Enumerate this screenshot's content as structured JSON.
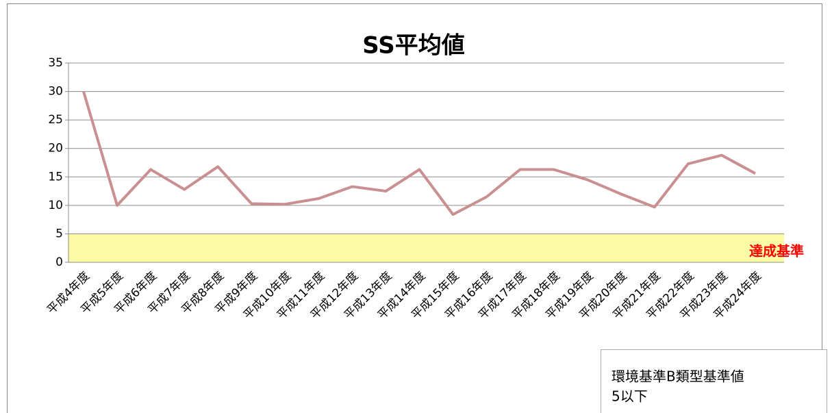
{
  "chart_data": {
    "type": "line",
    "title": "SS平均値",
    "categories": [
      "平成4年度",
      "平成5年度",
      "平成6年度",
      "平成7年度",
      "平成8年度",
      "平成9年度",
      "平成10年度",
      "平成11年度",
      "平成12年度",
      "平成13年度",
      "平成14年度",
      "平成15年度",
      "平成16年度",
      "平成17年度",
      "平成18年度",
      "平成19年度",
      "平成20年度",
      "平成21年度",
      "平成22年度",
      "平成23年度",
      "平成24年度"
    ],
    "values": [
      30,
      10,
      16.3,
      12.8,
      16.8,
      10.3,
      10.2,
      11.2,
      13.3,
      12.5,
      16.3,
      8.4,
      11.5,
      16.3,
      16.3,
      14.5,
      12,
      9.7,
      17.3,
      18.8,
      15.6
    ],
    "color": "#c98f91",
    "ylim": [
      0,
      35
    ],
    "yticks": [
      0,
      5,
      10,
      15,
      20,
      25,
      30,
      35
    ],
    "grid": true,
    "threshold": 5,
    "threshold_color": "#fbfba6",
    "threshold_label": "達成基準",
    "note": [
      "環境基準B類型基準値",
      "5以下"
    ]
  }
}
